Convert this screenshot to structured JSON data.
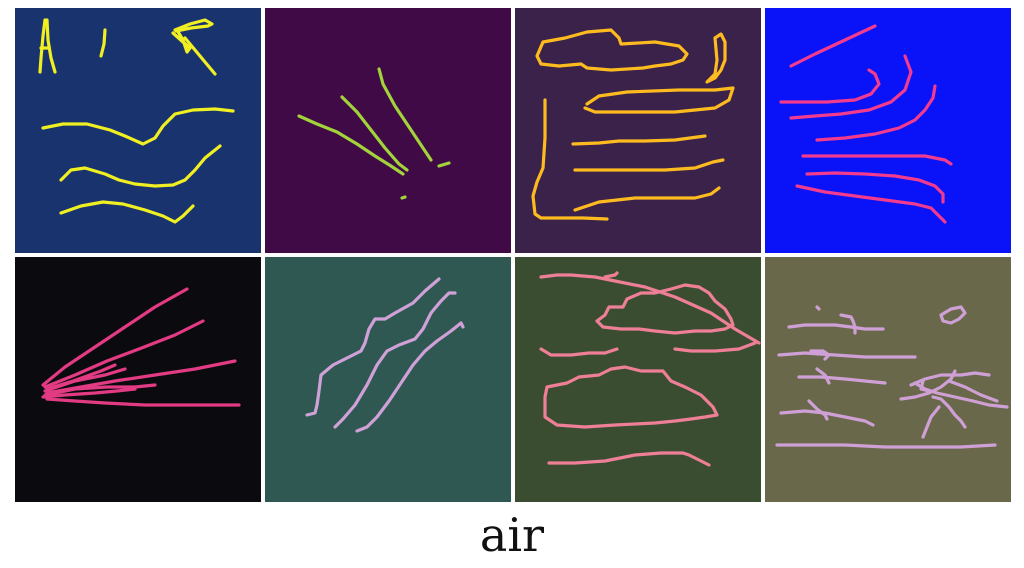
{
  "caption": "air",
  "tiles": [
    {
      "id": "doodle-1",
      "background": "#19336f",
      "stroke": "#f0ef22"
    },
    {
      "id": "doodle-2",
      "background": "#3f0a45",
      "stroke": "#a2d33a"
    },
    {
      "id": "doodle-3",
      "background": "#3a224a",
      "stroke": "#fdbb1f"
    },
    {
      "id": "doodle-4",
      "background": "#0a12f7",
      "stroke": "#f23b8e"
    },
    {
      "id": "doodle-5",
      "background": "#0b0a0e",
      "stroke": "#e23b83"
    },
    {
      "id": "doodle-6",
      "background": "#2f5853",
      "stroke": "#cfa1d7"
    },
    {
      "id": "doodle-7",
      "background": "#3a4d31",
      "stroke": "#ee7f96"
    },
    {
      "id": "doodle-8",
      "background": "#69684a",
      "stroke": "#cfa0d6"
    }
  ]
}
